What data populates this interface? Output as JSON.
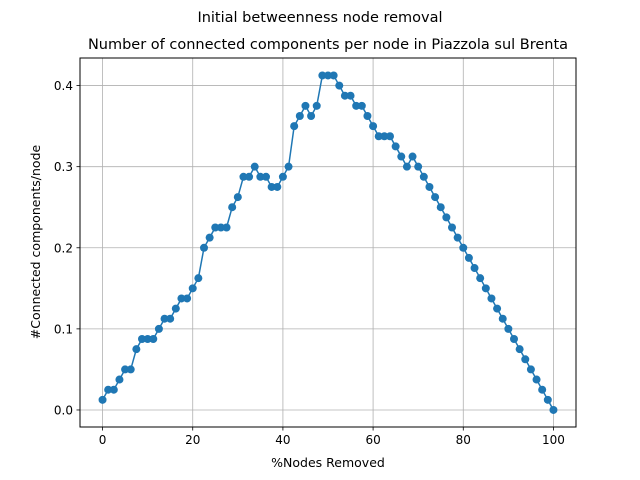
{
  "chart_data": {
    "type": "line",
    "suptitle": "Initial betweenness node removal",
    "title": "Number of connected components per node in Piazzola sul Brenta",
    "xlabel": "%Nodes Removed",
    "ylabel": "#Connected components/node",
    "xlim": [
      -5,
      105
    ],
    "ylim": [
      -0.021,
      0.434
    ],
    "xticks": [
      0,
      20,
      40,
      60,
      80,
      100
    ],
    "yticks": [
      0.0,
      0.1,
      0.2,
      0.3,
      0.4
    ],
    "ytick_labels": [
      "0.0",
      "0.1",
      "0.2",
      "0.3",
      "0.4"
    ],
    "grid": true,
    "color": "#1f77b4",
    "series": [
      {
        "x": [
          0,
          1.25,
          2.5,
          3.75,
          5,
          6.25,
          7.5,
          8.75,
          10,
          11.25,
          12.5,
          13.75,
          15,
          16.25,
          17.5,
          18.75,
          20,
          21.25,
          22.5,
          23.75,
          25,
          26.25,
          27.5,
          28.75,
          30,
          31.25,
          32.5,
          33.75,
          35,
          36.25,
          37.5,
          38.75,
          40,
          41.25,
          42.5,
          43.75,
          45,
          46.25,
          47.5,
          48.75,
          50,
          51.25,
          52.5,
          53.75,
          55,
          56.25,
          57.5,
          58.75,
          60,
          61.25,
          62.5,
          63.75,
          65,
          66.25,
          67.5,
          68.75,
          70,
          71.25,
          72.5,
          73.75,
          75,
          76.25,
          77.5,
          78.75,
          80,
          81.25,
          82.5,
          83.75,
          85,
          86.25,
          87.5,
          88.75,
          90,
          91.25,
          92.5,
          93.75,
          95,
          96.25,
          97.5,
          98.75,
          100
        ],
        "y": [
          0.0125,
          0.025,
          0.025,
          0.0375,
          0.05,
          0.05,
          0.075,
          0.0875,
          0.0875,
          0.0875,
          0.1,
          0.1125,
          0.1125,
          0.125,
          0.1375,
          0.1375,
          0.15,
          0.1625,
          0.2,
          0.2125,
          0.225,
          0.225,
          0.225,
          0.25,
          0.2625,
          0.2875,
          0.2875,
          0.3,
          0.2875,
          0.2875,
          0.275,
          0.275,
          0.2875,
          0.3,
          0.35,
          0.3625,
          0.375,
          0.3625,
          0.375,
          0.4125,
          0.4125,
          0.4125,
          0.4,
          0.3875,
          0.3875,
          0.375,
          0.375,
          0.3625,
          0.35,
          0.3375,
          0.3375,
          0.3375,
          0.325,
          0.3125,
          0.3,
          0.3125,
          0.3,
          0.2875,
          0.275,
          0.2625,
          0.25,
          0.2375,
          0.225,
          0.2125,
          0.2,
          0.1875,
          0.175,
          0.1625,
          0.15,
          0.1375,
          0.125,
          0.1125,
          0.1,
          0.0875,
          0.075,
          0.0625,
          0.05,
          0.0375,
          0.025,
          0.0125,
          0.0
        ]
      }
    ]
  }
}
